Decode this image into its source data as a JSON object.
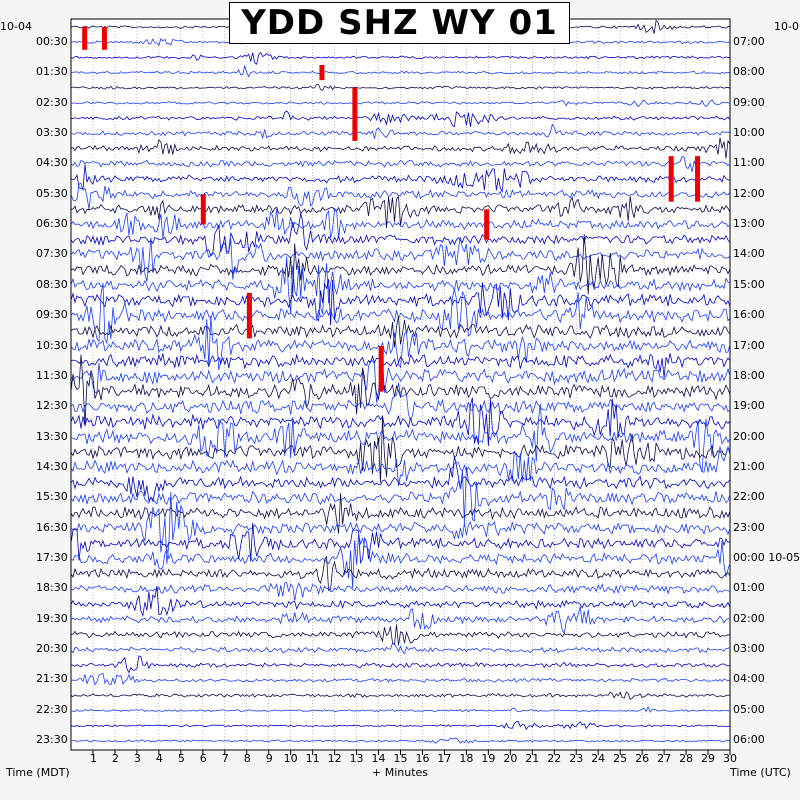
{
  "chart_data": {
    "type": "helicorder",
    "title": "YDD SHZ WY 01",
    "left_date": "10-04",
    "right_date": "10-0",
    "right_date_change": "10-05",
    "xlabel_left": "Time (MDT)",
    "xlabel_center": "+ Minutes",
    "xlabel_right": "Time (UTC)",
    "x_ticks": [
      "1",
      "2",
      "3",
      "4",
      "5",
      "6",
      "7",
      "8",
      "9",
      "10",
      "11",
      "12",
      "13",
      "14",
      "15",
      "16",
      "17",
      "18",
      "19",
      "20",
      "21",
      "22",
      "23",
      "24",
      "25",
      "26",
      "27",
      "28",
      "29",
      "30"
    ],
    "left_ticks": [
      "00:30",
      "01:30",
      "02:30",
      "03:30",
      "04:30",
      "05:30",
      "06:30",
      "07:30",
      "08:30",
      "09:30",
      "10:30",
      "11:30",
      "12:30",
      "13:30",
      "14:30",
      "15:30",
      "16:30",
      "17:30",
      "18:30",
      "19:30",
      "20:30",
      "21:30",
      "22:30",
      "23:30"
    ],
    "right_ticks": [
      "07:00",
      "08:00",
      "09:00",
      "10:00",
      "11:00",
      "12:00",
      "13:00",
      "14:00",
      "15:00",
      "16:00",
      "17:00",
      "18:00",
      "19:00",
      "20:00",
      "21:00",
      "22:00",
      "23:00",
      "00:00",
      "01:00",
      "02:00",
      "03:00",
      "04:00",
      "05:00",
      "06:00"
    ],
    "trace_rows": 48,
    "minutes_per_row": 30,
    "trace_colors": [
      "#0a0a50",
      "#d00000",
      "#0000c8",
      "#1a3cff"
    ],
    "clipped_color": "#ee0000",
    "grid": true
  }
}
